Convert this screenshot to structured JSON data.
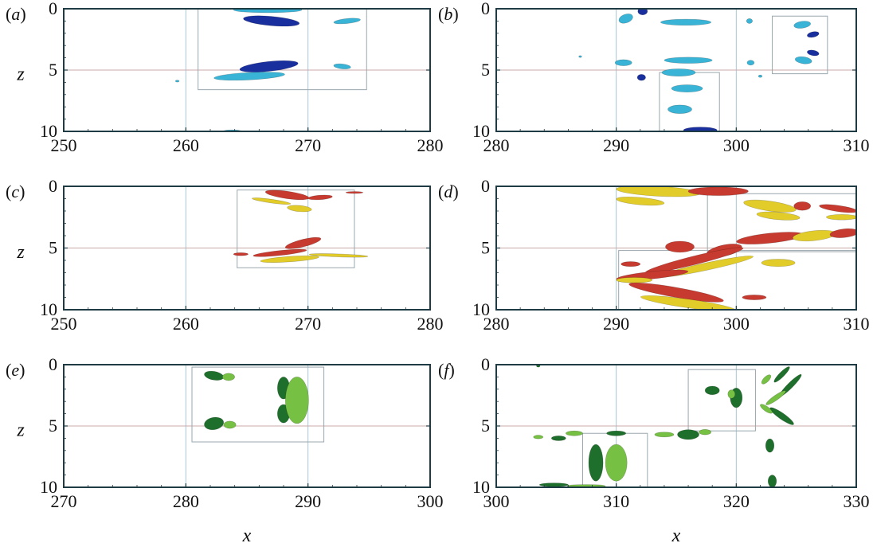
{
  "axis_labels": {
    "z": "z",
    "x": "x"
  },
  "palette": {
    "frame": "#1f3b44",
    "grid": "#a9c6d2",
    "box": "#9aa7ae",
    "hline": "#c9a8a8",
    "blue_dark": "#1a2f9e",
    "blue_light": "#3ab4d6",
    "red": "#c73a2f",
    "yellow": "#e2cc2a",
    "green_dark": "#1f6f2c",
    "green_light": "#76c043"
  },
  "chart_data": [
    {
      "type": "contour",
      "panel": "(a)",
      "label": {
        "open": "(",
        "letter": "a",
        "close": ")"
      },
      "xlim": [
        250,
        280
      ],
      "zlim": [
        0,
        10
      ],
      "xticks": [
        250,
        260,
        270,
        280
      ],
      "zticks": [
        0,
        5,
        10
      ],
      "xtick_labels": [
        "250",
        "260",
        "270",
        "280"
      ],
      "ztick_labels": [
        "0",
        "5",
        "10"
      ],
      "show_z_label": true,
      "show_x_label": false,
      "vgrid": [
        260,
        270
      ],
      "hline": 5,
      "boxes": [
        [
          261,
          0,
          274.8,
          6.6
        ]
      ],
      "blobs": [
        {
          "x": 266.7,
          "z": 0.1,
          "rx": 2.8,
          "rz": 0.22,
          "rot": 0,
          "color": "blue_light"
        },
        {
          "x": 267.0,
          "z": 1.0,
          "rx": 2.3,
          "rz": 0.38,
          "rot": 5,
          "color": "blue_dark"
        },
        {
          "x": 273.2,
          "z": 1.0,
          "rx": 1.1,
          "rz": 0.2,
          "rot": -6,
          "color": "blue_light"
        },
        {
          "x": 266.8,
          "z": 4.7,
          "rx": 2.4,
          "rz": 0.4,
          "rot": -6,
          "color": "blue_dark"
        },
        {
          "x": 265.2,
          "z": 5.5,
          "rx": 2.9,
          "rz": 0.3,
          "rot": -3,
          "color": "blue_light"
        },
        {
          "x": 272.8,
          "z": 4.7,
          "rx": 0.7,
          "rz": 0.2,
          "rot": 6,
          "color": "blue_light"
        },
        {
          "x": 259.3,
          "z": 5.9,
          "rx": 0.15,
          "rz": 0.08,
          "rot": 0,
          "color": "blue_light"
        },
        {
          "x": 263.8,
          "z": 10.0,
          "rx": 0.8,
          "rz": 0.12,
          "rot": 0,
          "color": "blue_light"
        }
      ]
    },
    {
      "type": "contour",
      "panel": "(b)",
      "label": {
        "open": "(",
        "letter": "b",
        "close": ")"
      },
      "xlim": [
        280,
        310
      ],
      "zlim": [
        0,
        10
      ],
      "xticks": [
        280,
        290,
        300,
        310
      ],
      "zticks": [
        0,
        5,
        10
      ],
      "xtick_labels": [
        "280",
        "290",
        "300",
        "310"
      ],
      "ztick_labels": [
        "0",
        "5",
        "10"
      ],
      "show_z_label": false,
      "show_x_label": false,
      "vgrid": [
        290,
        300
      ],
      "hline": 5,
      "boxes": [
        [
          303,
          0.6,
          307.6,
          5.3
        ],
        [
          293.6,
          5.2,
          298.6,
          10
        ]
      ],
      "blobs": [
        {
          "x": 290.8,
          "z": 0.8,
          "rx": 0.6,
          "rz": 0.35,
          "rot": -20,
          "color": "blue_light"
        },
        {
          "x": 292.2,
          "z": 0.2,
          "rx": 0.4,
          "rz": 0.3,
          "rot": 0,
          "color": "blue_dark"
        },
        {
          "x": 295.8,
          "z": 1.1,
          "rx": 2.1,
          "rz": 0.25,
          "rot": 0,
          "color": "blue_light"
        },
        {
          "x": 301.1,
          "z": 1.0,
          "rx": 0.25,
          "rz": 0.2,
          "rot": 0,
          "color": "blue_light"
        },
        {
          "x": 305.5,
          "z": 1.3,
          "rx": 0.7,
          "rz": 0.28,
          "rot": -8,
          "color": "blue_light"
        },
        {
          "x": 306.4,
          "z": 2.1,
          "rx": 0.5,
          "rz": 0.22,
          "rot": -12,
          "color": "blue_dark"
        },
        {
          "x": 306.4,
          "z": 3.6,
          "rx": 0.5,
          "rz": 0.22,
          "rot": 10,
          "color": "blue_dark"
        },
        {
          "x": 305.6,
          "z": 4.2,
          "rx": 0.7,
          "rz": 0.28,
          "rot": 8,
          "color": "blue_light"
        },
        {
          "x": 290.6,
          "z": 4.4,
          "rx": 0.7,
          "rz": 0.25,
          "rot": 0,
          "color": "blue_light"
        },
        {
          "x": 296.0,
          "z": 4.2,
          "rx": 2.0,
          "rz": 0.25,
          "rot": 0,
          "color": "blue_light"
        },
        {
          "x": 301.2,
          "z": 4.4,
          "rx": 0.3,
          "rz": 0.2,
          "rot": 0,
          "color": "blue_light"
        },
        {
          "x": 292.1,
          "z": 5.6,
          "rx": 0.35,
          "rz": 0.25,
          "rot": 0,
          "color": "blue_dark"
        },
        {
          "x": 295.2,
          "z": 5.2,
          "rx": 1.4,
          "rz": 0.3,
          "rot": 0,
          "color": "blue_light"
        },
        {
          "x": 295.9,
          "z": 6.5,
          "rx": 1.3,
          "rz": 0.3,
          "rot": 0,
          "color": "blue_light"
        },
        {
          "x": 295.3,
          "z": 8.2,
          "rx": 1.0,
          "rz": 0.35,
          "rot": 0,
          "color": "blue_light"
        },
        {
          "x": 297.0,
          "z": 9.9,
          "rx": 1.4,
          "rz": 0.25,
          "rot": 0,
          "color": "blue_dark"
        },
        {
          "x": 302.0,
          "z": 5.5,
          "rx": 0.15,
          "rz": 0.1,
          "rot": 0,
          "color": "blue_light"
        },
        {
          "x": 287.0,
          "z": 3.9,
          "rx": 0.12,
          "rz": 0.08,
          "rot": 0,
          "color": "blue_light"
        }
      ]
    },
    {
      "type": "contour",
      "panel": "(c)",
      "label": {
        "open": "(",
        "letter": "c",
        "close": ")"
      },
      "xlim": [
        250,
        280
      ],
      "zlim": [
        0,
        10
      ],
      "xticks": [
        250,
        260,
        270,
        280
      ],
      "zticks": [
        0,
        5,
        10
      ],
      "xtick_labels": [
        "250",
        "260",
        "270",
        "280"
      ],
      "ztick_labels": [
        "0",
        "5",
        "10"
      ],
      "show_z_label": true,
      "show_x_label": false,
      "vgrid": [
        260,
        270
      ],
      "hline": 5,
      "boxes": [
        [
          264.2,
          0.3,
          273.8,
          6.6
        ]
      ],
      "blobs": [
        {
          "x": 268.3,
          "z": 0.7,
          "rx": 1.8,
          "rz": 0.3,
          "rot": 8,
          "color": "red"
        },
        {
          "x": 271.0,
          "z": 0.9,
          "rx": 1.0,
          "rz": 0.18,
          "rot": -4,
          "color": "red"
        },
        {
          "x": 267.0,
          "z": 1.2,
          "rx": 1.6,
          "rz": 0.15,
          "rot": 8,
          "color": "yellow"
        },
        {
          "x": 269.3,
          "z": 1.8,
          "rx": 1.0,
          "rz": 0.25,
          "rot": 5,
          "color": "yellow"
        },
        {
          "x": 273.8,
          "z": 0.5,
          "rx": 0.7,
          "rz": 0.08,
          "rot": 0,
          "color": "red"
        },
        {
          "x": 269.6,
          "z": 4.6,
          "rx": 1.5,
          "rz": 0.3,
          "rot": -14,
          "color": "red"
        },
        {
          "x": 267.7,
          "z": 5.4,
          "rx": 2.2,
          "rz": 0.2,
          "rot": -6,
          "color": "red"
        },
        {
          "x": 268.5,
          "z": 5.9,
          "rx": 2.4,
          "rz": 0.22,
          "rot": -4,
          "color": "yellow"
        },
        {
          "x": 272.5,
          "z": 5.6,
          "rx": 2.4,
          "rz": 0.12,
          "rot": 2,
          "color": "yellow"
        },
        {
          "x": 264.5,
          "z": 5.5,
          "rx": 0.6,
          "rz": 0.12,
          "rot": 0,
          "color": "red"
        }
      ]
    },
    {
      "type": "contour",
      "panel": "(d)",
      "label": {
        "open": "(",
        "letter": "d",
        "close": ")"
      },
      "xlim": [
        280,
        310
      ],
      "zlim": [
        0,
        10
      ],
      "xticks": [
        280,
        290,
        300,
        310
      ],
      "zticks": [
        0,
        5,
        10
      ],
      "xtick_labels": [
        "280",
        "290",
        "300",
        "310"
      ],
      "ztick_labels": [
        "0",
        "5",
        "10"
      ],
      "show_z_label": false,
      "show_x_label": false,
      "vgrid": [
        290,
        300
      ],
      "hline": 5,
      "boxes": [
        [
          297.6,
          0.6,
          310,
          5.3
        ],
        [
          290.2,
          5.2,
          310,
          10
        ]
      ],
      "blobs": [
        {
          "x": 293.5,
          "z": 0.4,
          "rx": 3.5,
          "rz": 0.4,
          "rot": 3,
          "color": "yellow"
        },
        {
          "x": 298.5,
          "z": 0.4,
          "rx": 2.5,
          "rz": 0.35,
          "rot": 0,
          "color": "red"
        },
        {
          "x": 292.0,
          "z": 1.2,
          "rx": 2.0,
          "rz": 0.3,
          "rot": 5,
          "color": "yellow"
        },
        {
          "x": 302.8,
          "z": 1.6,
          "rx": 2.2,
          "rz": 0.4,
          "rot": 8,
          "color": "yellow"
        },
        {
          "x": 303.5,
          "z": 2.4,
          "rx": 1.8,
          "rz": 0.3,
          "rot": 5,
          "color": "yellow"
        },
        {
          "x": 305.5,
          "z": 1.6,
          "rx": 0.7,
          "rz": 0.35,
          "rot": 0,
          "color": "red"
        },
        {
          "x": 308.5,
          "z": 1.8,
          "rx": 1.6,
          "rz": 0.25,
          "rot": 8,
          "color": "red"
        },
        {
          "x": 308.8,
          "z": 2.5,
          "rx": 1.3,
          "rz": 0.22,
          "rot": 0,
          "color": "yellow"
        },
        {
          "x": 302.8,
          "z": 4.2,
          "rx": 2.8,
          "rz": 0.4,
          "rot": -6,
          "color": "red"
        },
        {
          "x": 306.5,
          "z": 4.0,
          "rx": 1.8,
          "rz": 0.4,
          "rot": -6,
          "color": "yellow"
        },
        {
          "x": 309.0,
          "z": 3.8,
          "rx": 1.2,
          "rz": 0.35,
          "rot": -6,
          "color": "red"
        },
        {
          "x": 295.3,
          "z": 4.9,
          "rx": 1.2,
          "rz": 0.45,
          "rot": 0,
          "color": "red"
        },
        {
          "x": 299.0,
          "z": 5.2,
          "rx": 1.5,
          "rz": 0.45,
          "rot": -12,
          "color": "red"
        },
        {
          "x": 296.5,
          "z": 6.0,
          "rx": 4.2,
          "rz": 0.35,
          "rot": -14,
          "color": "red"
        },
        {
          "x": 297.5,
          "z": 6.5,
          "rx": 4.0,
          "rz": 0.3,
          "rot": -12,
          "color": "yellow"
        },
        {
          "x": 293.0,
          "z": 7.2,
          "rx": 3.0,
          "rz": 0.3,
          "rot": -6,
          "color": "red"
        },
        {
          "x": 291.5,
          "z": 7.6,
          "rx": 1.5,
          "rz": 0.22,
          "rot": 0,
          "color": "yellow"
        },
        {
          "x": 303.5,
          "z": 6.2,
          "rx": 1.4,
          "rz": 0.3,
          "rot": 0,
          "color": "yellow"
        },
        {
          "x": 291.2,
          "z": 6.3,
          "rx": 0.8,
          "rz": 0.2,
          "rot": 0,
          "color": "red"
        },
        {
          "x": 295.0,
          "z": 8.6,
          "rx": 4.0,
          "rz": 0.4,
          "rot": 10,
          "color": "red"
        },
        {
          "x": 296.0,
          "z": 9.5,
          "rx": 4.0,
          "rz": 0.35,
          "rot": 8,
          "color": "yellow"
        },
        {
          "x": 301.5,
          "z": 9.0,
          "rx": 1.0,
          "rz": 0.2,
          "rot": 0,
          "color": "red"
        }
      ]
    },
    {
      "type": "contour",
      "panel": "(e)",
      "label": {
        "open": "(",
        "letter": "e",
        "close": ")"
      },
      "xlim": [
        270,
        300
      ],
      "zlim": [
        0,
        10
      ],
      "xticks": [
        270,
        280,
        290,
        300
      ],
      "zticks": [
        0,
        5,
        10
      ],
      "xtick_labels": [
        "270",
        "280",
        "290",
        "300"
      ],
      "ztick_labels": [
        "0",
        "5",
        "10"
      ],
      "show_z_label": true,
      "show_x_label": true,
      "vgrid": [
        280,
        290
      ],
      "hline": 5,
      "boxes": [
        [
          280.5,
          0.2,
          291.3,
          6.3
        ]
      ],
      "blobs": [
        {
          "x": 282.3,
          "z": 0.9,
          "rx": 0.8,
          "rz": 0.35,
          "rot": 10,
          "color": "green_dark"
        },
        {
          "x": 283.5,
          "z": 1.0,
          "rx": 0.5,
          "rz": 0.3,
          "rot": 0,
          "color": "green_light"
        },
        {
          "x": 282.3,
          "z": 4.8,
          "rx": 0.8,
          "rz": 0.5,
          "rot": -10,
          "color": "green_dark"
        },
        {
          "x": 283.6,
          "z": 4.9,
          "rx": 0.5,
          "rz": 0.3,
          "rot": 0,
          "color": "green_light"
        },
        {
          "x": 288.0,
          "z": 1.9,
          "rx": 0.5,
          "rz": 0.9,
          "rot": 0,
          "color": "green_dark"
        },
        {
          "x": 288.0,
          "z": 4.0,
          "rx": 0.5,
          "rz": 0.75,
          "rot": 0,
          "color": "green_dark"
        },
        {
          "x": 289.1,
          "z": 2.9,
          "rx": 0.95,
          "rz": 1.9,
          "rot": 0,
          "color": "green_light"
        }
      ]
    },
    {
      "type": "contour",
      "panel": "(f)",
      "label": {
        "open": "(",
        "letter": "f",
        "close": ")"
      },
      "xlim": [
        300,
        330
      ],
      "zlim": [
        0,
        10
      ],
      "xticks": [
        300,
        310,
        320,
        330
      ],
      "zticks": [
        0,
        5,
        10
      ],
      "xtick_labels": [
        "300",
        "310",
        "320",
        "330"
      ],
      "ztick_labels": [
        "0",
        "5",
        "10"
      ],
      "show_z_label": false,
      "show_x_label": true,
      "vgrid": [
        310,
        320
      ],
      "hline": 5,
      "boxes": [
        [
          316,
          0.4,
          321.6,
          5.4
        ],
        [
          307.2,
          5.6,
          312.6,
          10
        ]
      ],
      "blobs": [
        {
          "x": 318.0,
          "z": 2.1,
          "rx": 0.6,
          "rz": 0.35,
          "rot": 0,
          "color": "green_dark"
        },
        {
          "x": 320.0,
          "z": 2.7,
          "rx": 0.5,
          "rz": 0.8,
          "rot": 0,
          "color": "green_dark"
        },
        {
          "x": 319.6,
          "z": 2.4,
          "rx": 0.3,
          "rz": 0.35,
          "rot": 0,
          "color": "green_light"
        },
        {
          "x": 323.8,
          "z": 0.8,
          "rx": 0.9,
          "rz": 0.2,
          "rot": -45,
          "color": "green_dark"
        },
        {
          "x": 324.5,
          "z": 1.7,
          "rx": 1.3,
          "rz": 0.22,
          "rot": -45,
          "color": "green_dark"
        },
        {
          "x": 322.5,
          "z": 1.2,
          "rx": 0.5,
          "rz": 0.22,
          "rot": -45,
          "color": "green_light"
        },
        {
          "x": 323.3,
          "z": 2.7,
          "rx": 1.0,
          "rz": 0.2,
          "rot": -35,
          "color": "green_light"
        },
        {
          "x": 323.8,
          "z": 4.2,
          "rx": 1.2,
          "rz": 0.25,
          "rot": 35,
          "color": "green_dark"
        },
        {
          "x": 322.5,
          "z": 3.6,
          "rx": 0.6,
          "rz": 0.2,
          "rot": 35,
          "color": "green_light"
        },
        {
          "x": 322.8,
          "z": 6.6,
          "rx": 0.35,
          "rz": 0.55,
          "rot": 0,
          "color": "green_dark"
        },
        {
          "x": 323.0,
          "z": 9.5,
          "rx": 0.35,
          "rz": 0.5,
          "rot": 0,
          "color": "green_dark"
        },
        {
          "x": 316.0,
          "z": 5.7,
          "rx": 0.9,
          "rz": 0.4,
          "rot": 0,
          "color": "green_dark"
        },
        {
          "x": 314.0,
          "z": 5.7,
          "rx": 0.8,
          "rz": 0.2,
          "rot": 0,
          "color": "green_light"
        },
        {
          "x": 317.4,
          "z": 5.5,
          "rx": 0.5,
          "rz": 0.22,
          "rot": 0,
          "color": "green_light"
        },
        {
          "x": 310.0,
          "z": 5.6,
          "rx": 0.8,
          "rz": 0.2,
          "rot": 0,
          "color": "green_dark"
        },
        {
          "x": 306.5,
          "z": 5.6,
          "rx": 0.7,
          "rz": 0.2,
          "rot": 0,
          "color": "green_light"
        },
        {
          "x": 305.2,
          "z": 6.0,
          "rx": 0.6,
          "rz": 0.2,
          "rot": 0,
          "color": "green_dark"
        },
        {
          "x": 303.5,
          "z": 5.9,
          "rx": 0.4,
          "rz": 0.15,
          "rot": 0,
          "color": "green_light"
        },
        {
          "x": 308.3,
          "z": 8.0,
          "rx": 0.6,
          "rz": 1.5,
          "rot": 0,
          "color": "green_dark"
        },
        {
          "x": 310.0,
          "z": 8.0,
          "rx": 0.9,
          "rz": 1.5,
          "rot": 0,
          "color": "green_light"
        },
        {
          "x": 304.8,
          "z": 9.8,
          "rx": 1.2,
          "rz": 0.15,
          "rot": 0,
          "color": "green_dark"
        },
        {
          "x": 307.5,
          "z": 9.9,
          "rx": 1.6,
          "rz": 0.12,
          "rot": 0,
          "color": "green_light"
        },
        {
          "x": 303.5,
          "z": 0.1,
          "rx": 0.15,
          "rz": 0.1,
          "rot": 0,
          "color": "green_dark"
        }
      ]
    }
  ]
}
